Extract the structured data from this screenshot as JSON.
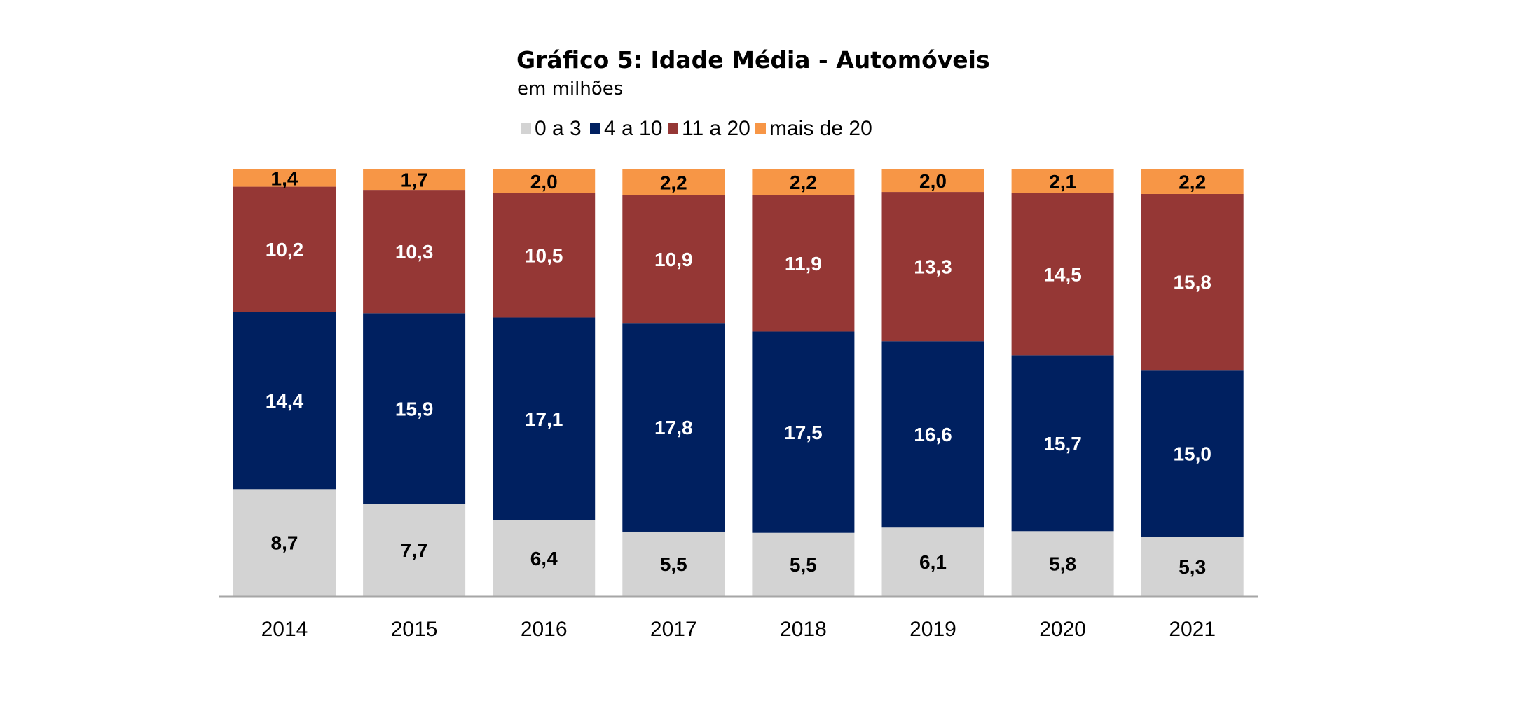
{
  "chart_data": {
    "type": "bar",
    "stacked": "percent",
    "title": "Gráfico 5: Idade Média - Automóveis",
    "subtitle": "em milhões",
    "xlabel": "",
    "ylabel": "",
    "legend_position": "top",
    "grid": false,
    "categories": [
      "2014",
      "2015",
      "2016",
      "2017",
      "2018",
      "2019",
      "2020",
      "2021"
    ],
    "series": [
      {
        "name": "0 a 3",
        "color": "#d3d3d3",
        "label_color": "#000000",
        "values": [
          8.7,
          7.7,
          6.4,
          5.5,
          5.5,
          6.1,
          5.8,
          5.3
        ],
        "labels": [
          "8,7",
          "7,7",
          "6,4",
          "5,5",
          "5,5",
          "6,1",
          "5,8",
          "5,3"
        ]
      },
      {
        "name": "4 a 10",
        "color": "#002060",
        "label_color": "#ffffff",
        "values": [
          14.4,
          15.9,
          17.1,
          17.8,
          17.5,
          16.6,
          15.7,
          15.0
        ],
        "labels": [
          "14,4",
          "15,9",
          "17,1",
          "17,8",
          "17,5",
          "16,6",
          "15,7",
          "15,0"
        ]
      },
      {
        "name": "11 a 20",
        "color": "#953735",
        "label_color": "#ffffff",
        "values": [
          10.2,
          10.3,
          10.5,
          10.9,
          11.9,
          13.3,
          14.5,
          15.8
        ],
        "labels": [
          "10,2",
          "10,3",
          "10,5",
          "10,9",
          "11,9",
          "13,3",
          "14,5",
          "15,8"
        ]
      },
      {
        "name": "mais de 20",
        "color": "#f79646",
        "label_color": "#000000",
        "values": [
          1.4,
          1.7,
          2.0,
          2.2,
          2.2,
          2.0,
          2.1,
          2.2
        ],
        "labels": [
          "1,4",
          "1,7",
          "2,0",
          "2,2",
          "2,2",
          "2,0",
          "2,1",
          "2,2"
        ]
      }
    ],
    "axis_color": "#a6a6a6"
  }
}
